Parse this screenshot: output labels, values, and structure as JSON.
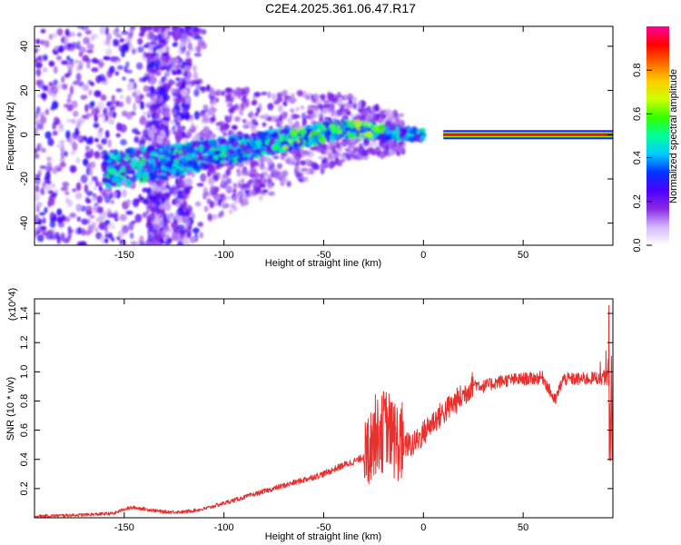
{
  "title": "C2E4.2025.361.06.47.R17",
  "chart_data": [
    {
      "type": "heatmap",
      "title": "C2E4.2025.361.06.47.R17",
      "xlabel": "Height of straight line (km)",
      "ylabel": "Frequency (Hz)",
      "xlim": [
        -195,
        95
      ],
      "ylim": [
        -50,
        49
      ],
      "xticks": [
        -150,
        -100,
        -50,
        0,
        50
      ],
      "yticks": [
        -40,
        -20,
        0,
        20,
        40
      ],
      "colorbar": {
        "label": "Normalized spectral amplitude",
        "range": [
          0,
          1
        ],
        "ticks": [
          "0.0",
          "0.2",
          "0.4",
          "0.6",
          "0.8"
        ],
        "colors": [
          "#ffffff",
          "#d4b8ff",
          "#8a2be2",
          "#4b00ff",
          "#0033ff",
          "#00ccff",
          "#00ff99",
          "#33ff00",
          "#ccff00",
          "#ffcc00",
          "#ff6600",
          "#ff0000",
          "#ff0099"
        ]
      },
      "features": [
        {
          "name": "stable tone",
          "x_range": [
            10,
            95
          ],
          "frequency": 0,
          "amplitude": 0.95
        },
        {
          "name": "drifting line",
          "points": [
            [
              -160,
              -16
            ],
            [
              -120,
              -11
            ],
            [
              -90,
              -6
            ],
            [
              -60,
              -1
            ],
            [
              -40,
              3
            ],
            [
              -20,
              1
            ],
            [
              0,
              0
            ]
          ],
          "amplitude": 0.4
        },
        {
          "name": "broadband noise",
          "x_range": [
            -195,
            -110
          ],
          "frequency_range": [
            -50,
            49
          ],
          "amplitude": 0.15
        }
      ]
    },
    {
      "type": "line",
      "xlabel": "Height of straight line (km)",
      "ylabel": "SNR (10 * v/v)",
      "yscale_label": "(x10^4)",
      "xlim": [
        -195,
        95
      ],
      "ylim": [
        0,
        1.5
      ],
      "xticks": [
        -150,
        -100,
        -50,
        0,
        50
      ],
      "yticks": [
        0.2,
        0.4,
        0.6,
        0.8,
        1.0,
        1.2,
        1.4
      ],
      "color": "#e8302e",
      "series": [
        {
          "name": "SNR",
          "x": [
            -195,
            -170,
            -155,
            -150,
            -145,
            -130,
            -120,
            -110,
            -100,
            -90,
            -80,
            -70,
            -60,
            -50,
            -40,
            -32,
            -28,
            -25,
            -22,
            -18,
            -15,
            -12,
            -5,
            0,
            5,
            10,
            15,
            20,
            25,
            30,
            40,
            50,
            60,
            66,
            70,
            80,
            88,
            93,
            95
          ],
          "values": [
            0.01,
            0.02,
            0.03,
            0.06,
            0.07,
            0.04,
            0.04,
            0.06,
            0.1,
            0.14,
            0.18,
            0.22,
            0.26,
            0.3,
            0.36,
            0.4,
            0.45,
            0.55,
            0.62,
            0.6,
            0.55,
            0.5,
            0.5,
            0.58,
            0.66,
            0.72,
            0.78,
            0.84,
            0.92,
            0.9,
            0.94,
            0.95,
            0.96,
            0.8,
            0.95,
            0.95,
            0.96,
            0.95,
            1.5
          ]
        }
      ]
    }
  ]
}
